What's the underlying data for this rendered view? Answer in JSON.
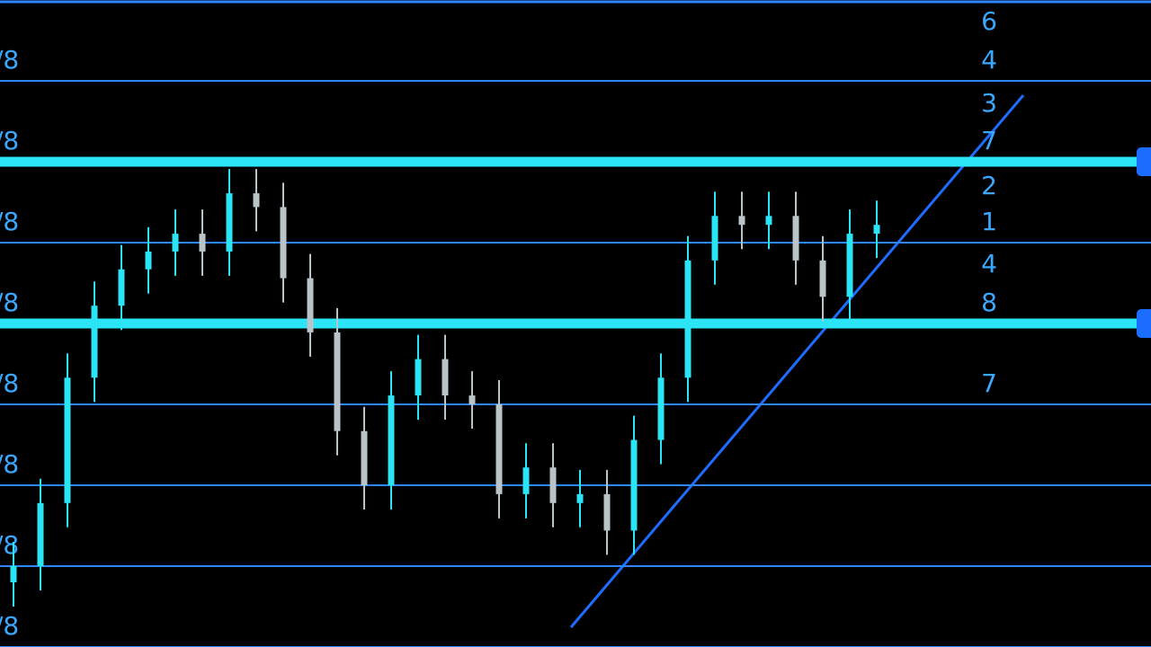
{
  "chart_data": {
    "type": "candlestick",
    "ylim": [
      -1,
      7
    ],
    "yticks": [
      {
        "value": 6,
        "label": "/8"
      },
      {
        "value": 5,
        "label": "/8"
      },
      {
        "value": 4,
        "label": "/8"
      },
      {
        "value": 3,
        "label": "/8"
      },
      {
        "value": 2,
        "label": "/8"
      },
      {
        "value": 1,
        "label": "/8"
      },
      {
        "value": 0,
        "label": "/8"
      },
      {
        "value": -1,
        "label": "/8"
      }
    ],
    "grid": true,
    "grid_color": "#2f86ff",
    "bands": [
      5,
      3
    ],
    "band_color": "#2be4f5",
    "up_color": "#2be4f5",
    "down_color": "#b9c4c8",
    "open": [
      -0.2,
      0,
      0.78,
      2.33,
      3.22,
      3.67,
      3.89,
      4.11,
      3.89,
      4.61,
      4.44,
      3.56,
      2.89,
      1.67,
      1,
      2.11,
      2.56,
      2.11,
      2,
      0.89,
      1.22,
      0.78,
      0.89,
      0.44,
      1.56,
      2.33,
      3.78,
      4.33,
      4.22,
      4.33,
      3.78,
      3.33,
      4.11
    ],
    "close": [
      0,
      0.78,
      2.33,
      3.22,
      3.67,
      3.89,
      4.11,
      3.89,
      4.61,
      4.44,
      3.56,
      2.89,
      1.67,
      1,
      2.11,
      2.56,
      2.11,
      2,
      0.89,
      1.22,
      0.78,
      0.89,
      0.44,
      1.56,
      2.33,
      3.78,
      4.33,
      4.22,
      4.33,
      3.78,
      3.33,
      4.11,
      4.22
    ],
    "high": [
      0.3,
      1.08,
      2.63,
      3.52,
      3.97,
      4.19,
      4.41,
      4.41,
      4.91,
      4.91,
      4.74,
      3.86,
      3.19,
      1.97,
      2.41,
      2.86,
      2.86,
      2.41,
      2.3,
      1.52,
      1.52,
      1.19,
      1.19,
      1.86,
      2.63,
      4.08,
      4.63,
      4.63,
      4.63,
      4.63,
      4.08,
      4.41,
      4.52
    ],
    "low": [
      -0.5,
      -0.3,
      0.48,
      2.03,
      2.92,
      3.37,
      3.59,
      3.59,
      3.59,
      4.14,
      3.26,
      2.59,
      1.37,
      0.7,
      0.7,
      1.81,
      1.81,
      1.7,
      0.59,
      0.59,
      0.48,
      0.48,
      0.14,
      0.14,
      1.26,
      2.03,
      3.48,
      3.92,
      3.92,
      3.48,
      3.03,
      3.03,
      3.81
    ]
  },
  "right_labels": [
    6,
    4,
    3,
    7,
    2,
    1,
    4,
    8,
    7
  ]
}
